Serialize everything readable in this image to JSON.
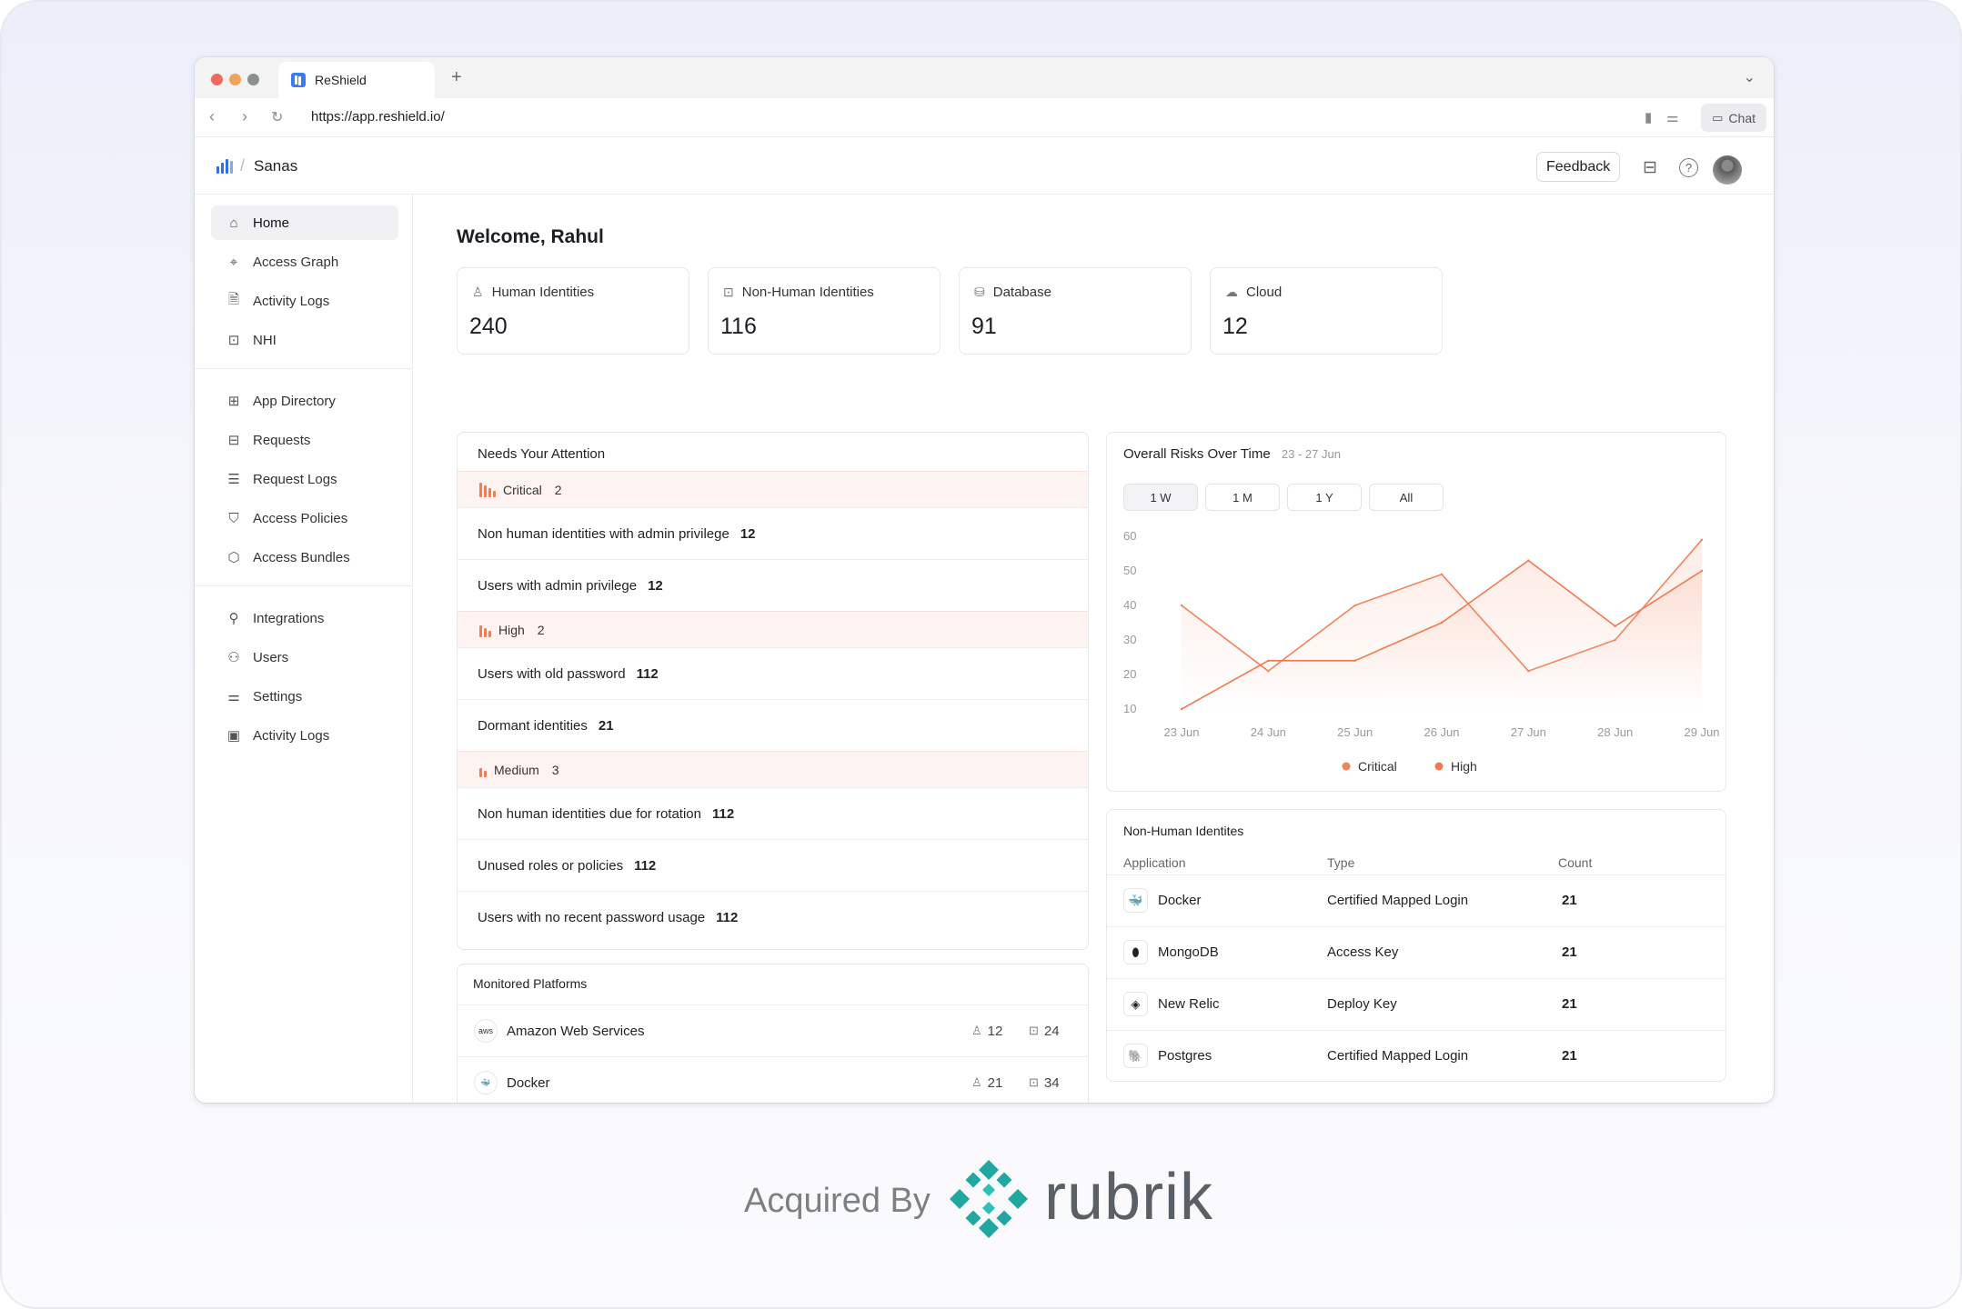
{
  "browser": {
    "tab_title": "ReShield",
    "url": "https://app.reshield.io/",
    "chat_label": "Chat"
  },
  "app": {
    "org": "Sanas",
    "feedback_label": "Feedback"
  },
  "sidebar": {
    "groups": [
      [
        {
          "label": "Home",
          "icon": "home-icon",
          "active": true
        },
        {
          "label": "Access Graph",
          "icon": "telescope-icon"
        },
        {
          "label": "Activity Logs",
          "icon": "file-check-icon"
        },
        {
          "label": "NHI",
          "icon": "bot-icon"
        }
      ],
      [
        {
          "label": "App Directory",
          "icon": "grid-icon"
        },
        {
          "label": "Requests",
          "icon": "inbox-icon"
        },
        {
          "label": "Request Logs",
          "icon": "list-icon"
        },
        {
          "label": "Access Policies",
          "icon": "shield-icon"
        },
        {
          "label": "Access Bundles",
          "icon": "package-icon"
        }
      ],
      [
        {
          "label": "Integrations",
          "icon": "plug-icon"
        },
        {
          "label": "Users",
          "icon": "users-icon"
        },
        {
          "label": "Settings",
          "icon": "sliders-icon"
        },
        {
          "label": "Activity Logs",
          "icon": "monitor-check-icon"
        }
      ]
    ]
  },
  "welcome": "Welcome, Rahul",
  "stats": [
    {
      "label": "Human Identities",
      "value": "240",
      "icon": "user-icon"
    },
    {
      "label": "Non-Human Identities",
      "value": "116",
      "icon": "bot-icon"
    },
    {
      "label": "Database",
      "value": "91",
      "icon": "database-icon"
    },
    {
      "label": "Cloud",
      "value": "12",
      "icon": "cloud-icon"
    }
  ],
  "attention": {
    "title": "Needs Your Attention",
    "sections": [
      {
        "severity": "Critical",
        "count": "2",
        "items": [
          {
            "label": "Non human identities with admin privilege",
            "count": "12"
          },
          {
            "label": "Users with admin privilege",
            "count": "12"
          }
        ]
      },
      {
        "severity": "High",
        "count": "2",
        "items": [
          {
            "label": "Users with old password",
            "count": "112"
          },
          {
            "label": "Dormant identities",
            "count": "21"
          }
        ]
      },
      {
        "severity": "Medium",
        "count": "3",
        "items": [
          {
            "label": "Non human identities due for rotation",
            "count": "112"
          },
          {
            "label": "Unused roles or policies",
            "count": "112"
          },
          {
            "label": "Users with no recent password usage",
            "count": "112"
          }
        ]
      }
    ]
  },
  "platforms": {
    "title": "Monitored Platforms",
    "items": [
      {
        "name": "Amazon Web Services",
        "icon_text": "aws",
        "humans": "12",
        "bots": "24"
      },
      {
        "name": "Docker",
        "icon_text": "🐳",
        "humans": "21",
        "bots": "34"
      }
    ]
  },
  "risk_chart": {
    "title": "Overall Risks Over Time",
    "subtitle": "23 - 27 Jun",
    "ranges": [
      "1 W",
      "1 M",
      "1 Y",
      "All"
    ],
    "active_range": "1 W",
    "colors": {
      "critical": "#f0845f",
      "high": "#ef7a50"
    }
  },
  "chart_data": {
    "type": "line",
    "categories": [
      "23 Jun",
      "24 Jun",
      "25 Jun",
      "26 Jun",
      "27 Jun",
      "28 Jun",
      "29 Jun"
    ],
    "series": [
      {
        "name": "Critical",
        "values": [
          40,
          21,
          40,
          49,
          21,
          30,
          59
        ]
      },
      {
        "name": "High",
        "values": [
          10,
          24,
          24,
          35,
          53,
          34,
          50
        ]
      }
    ],
    "ylim": [
      10,
      60
    ],
    "yticks": [
      60,
      50,
      40,
      30,
      20,
      10
    ],
    "legend": "bottom",
    "grid": false
  },
  "nhi_table": {
    "title": "Non-Human Identites",
    "columns": [
      "Application",
      "Type",
      "Count"
    ],
    "rows": [
      {
        "app": "Docker",
        "type": "Certified Mapped Login",
        "count": "21",
        "icon": "docker-icon"
      },
      {
        "app": "MongoDB",
        "type": "Access Key",
        "count": "21",
        "icon": "mongodb-icon"
      },
      {
        "app": "New Relic",
        "type": "Deploy Key",
        "count": "21",
        "icon": "newrelic-icon"
      },
      {
        "app": "Postgres",
        "type": "Certified Mapped Login",
        "count": "21",
        "icon": "postgres-icon"
      }
    ]
  },
  "footer": {
    "acquired": "Acquired By",
    "brand": "rubrik",
    "brand_color": "#1fa7a0"
  }
}
